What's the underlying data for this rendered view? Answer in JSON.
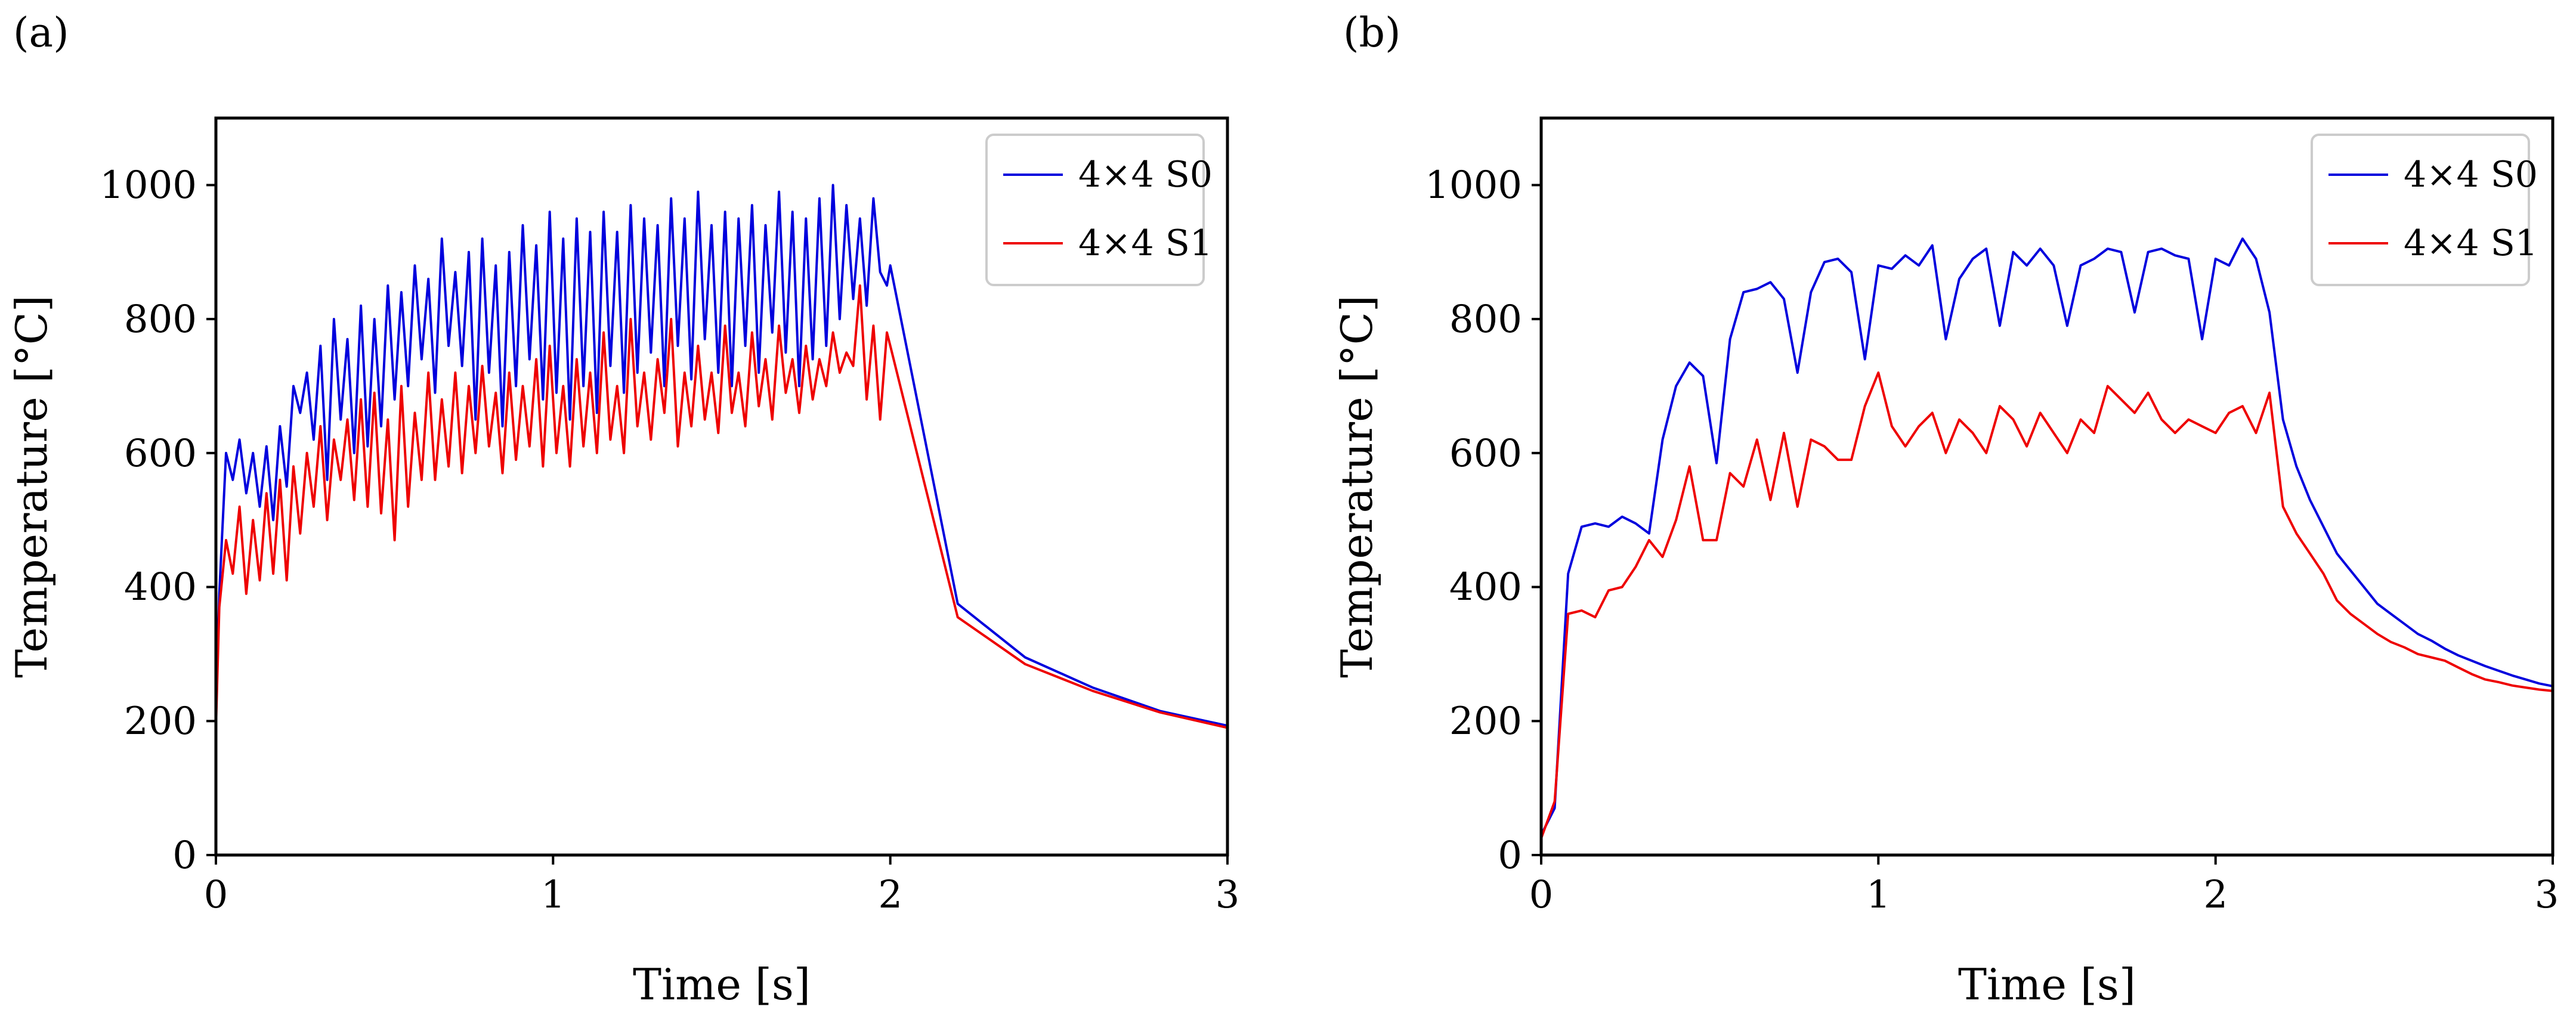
{
  "figure": {
    "colors": {
      "s0": "#0000dd",
      "s1": "#ee0000",
      "axis": "#000000",
      "legend_border": "#cccccc"
    }
  },
  "chart_data": [
    {
      "type": "line",
      "panel_label": "(a)",
      "xlabel": "Time [s]",
      "ylabel": "Temperature [°C]",
      "xlim": [
        0,
        3
      ],
      "ylim": [
        0,
        1100
      ],
      "xticks": [
        0,
        1,
        2,
        3
      ],
      "xtick_labels": [
        "0",
        "1",
        "2",
        "3"
      ],
      "yticks": [
        0,
        200,
        400,
        600,
        800,
        1000
      ],
      "ytick_labels": [
        "0",
        "200",
        "400",
        "600",
        "800",
        "1000"
      ],
      "legend": {
        "placement": "top-right",
        "entries": [
          "4×4 S0",
          "4×4 S1"
        ]
      },
      "series": [
        {
          "name": "4×4 S0",
          "color": "#0000dd",
          "x": [
            0,
            0.01,
            0.03,
            0.05,
            0.07,
            0.09,
            0.11,
            0.13,
            0.15,
            0.17,
            0.19,
            0.21,
            0.23,
            0.25,
            0.27,
            0.29,
            0.31,
            0.33,
            0.35,
            0.37,
            0.39,
            0.41,
            0.43,
            0.45,
            0.47,
            0.49,
            0.51,
            0.53,
            0.55,
            0.57,
            0.59,
            0.61,
            0.63,
            0.65,
            0.67,
            0.69,
            0.71,
            0.73,
            0.75,
            0.77,
            0.79,
            0.81,
            0.83,
            0.85,
            0.87,
            0.89,
            0.91,
            0.93,
            0.95,
            0.97,
            0.99,
            1.01,
            1.03,
            1.05,
            1.07,
            1.09,
            1.11,
            1.13,
            1.15,
            1.17,
            1.19,
            1.21,
            1.23,
            1.25,
            1.27,
            1.29,
            1.31,
            1.33,
            1.35,
            1.37,
            1.39,
            1.41,
            1.43,
            1.45,
            1.47,
            1.49,
            1.51,
            1.53,
            1.55,
            1.57,
            1.59,
            1.61,
            1.63,
            1.65,
            1.67,
            1.69,
            1.71,
            1.73,
            1.75,
            1.77,
            1.79,
            1.81,
            1.83,
            1.85,
            1.87,
            1.89,
            1.91,
            1.93,
            1.95,
            1.97,
            1.99,
            2.0,
            2.2,
            2.4,
            2.6,
            2.8,
            3.0
          ],
          "y": [
            210,
            390,
            600,
            560,
            620,
            540,
            600,
            520,
            610,
            500,
            640,
            550,
            700,
            660,
            720,
            620,
            760,
            560,
            800,
            650,
            770,
            600,
            820,
            610,
            800,
            640,
            850,
            680,
            840,
            700,
            880,
            740,
            860,
            690,
            920,
            760,
            870,
            730,
            900,
            650,
            920,
            720,
            880,
            640,
            900,
            700,
            940,
            740,
            910,
            680,
            960,
            690,
            920,
            650,
            950,
            700,
            930,
            660,
            960,
            730,
            930,
            690,
            970,
            720,
            950,
            750,
            940,
            700,
            980,
            760,
            950,
            710,
            990,
            770,
            940,
            720,
            960,
            700,
            950,
            760,
            970,
            720,
            940,
            780,
            990,
            750,
            960,
            700,
            950,
            740,
            980,
            760,
            1000,
            800,
            970,
            830,
            950,
            820,
            980,
            870,
            850,
            880,
            375,
            295,
            250,
            215,
            193
          ]
        },
        {
          "name": "4×4 S1",
          "color": "#ee0000",
          "x": [
            0,
            0.01,
            0.03,
            0.05,
            0.07,
            0.09,
            0.11,
            0.13,
            0.15,
            0.17,
            0.19,
            0.21,
            0.23,
            0.25,
            0.27,
            0.29,
            0.31,
            0.33,
            0.35,
            0.37,
            0.39,
            0.41,
            0.43,
            0.45,
            0.47,
            0.49,
            0.51,
            0.53,
            0.55,
            0.57,
            0.59,
            0.61,
            0.63,
            0.65,
            0.67,
            0.69,
            0.71,
            0.73,
            0.75,
            0.77,
            0.79,
            0.81,
            0.83,
            0.85,
            0.87,
            0.89,
            0.91,
            0.93,
            0.95,
            0.97,
            0.99,
            1.01,
            1.03,
            1.05,
            1.07,
            1.09,
            1.11,
            1.13,
            1.15,
            1.17,
            1.19,
            1.21,
            1.23,
            1.25,
            1.27,
            1.29,
            1.31,
            1.33,
            1.35,
            1.37,
            1.39,
            1.41,
            1.43,
            1.45,
            1.47,
            1.49,
            1.51,
            1.53,
            1.55,
            1.57,
            1.59,
            1.61,
            1.63,
            1.65,
            1.67,
            1.69,
            1.71,
            1.73,
            1.75,
            1.77,
            1.79,
            1.81,
            1.83,
            1.85,
            1.87,
            1.89,
            1.91,
            1.93,
            1.95,
            1.97,
            1.99,
            2.0,
            2.2,
            2.4,
            2.6,
            2.8,
            3.0
          ],
          "y": [
            190,
            370,
            470,
            420,
            520,
            390,
            500,
            410,
            540,
            420,
            560,
            410,
            580,
            480,
            600,
            520,
            640,
            500,
            620,
            560,
            650,
            530,
            680,
            520,
            690,
            510,
            650,
            470,
            700,
            520,
            660,
            560,
            720,
            560,
            680,
            580,
            720,
            570,
            700,
            600,
            730,
            610,
            690,
            570,
            720,
            590,
            700,
            610,
            740,
            580,
            760,
            600,
            700,
            580,
            740,
            610,
            720,
            600,
            780,
            620,
            700,
            600,
            800,
            640,
            720,
            620,
            740,
            660,
            800,
            610,
            720,
            640,
            760,
            650,
            720,
            630,
            790,
            660,
            720,
            640,
            780,
            670,
            740,
            650,
            790,
            690,
            740,
            660,
            760,
            680,
            740,
            700,
            780,
            720,
            750,
            730,
            850,
            680,
            790,
            650,
            780,
            760,
            355,
            285,
            245,
            213,
            190
          ]
        }
      ]
    },
    {
      "type": "line",
      "panel_label": "(b)",
      "xlabel": "Time [s]",
      "ylabel": "Temperature [°C]",
      "xlim": [
        0,
        3
      ],
      "ylim": [
        0,
        1100
      ],
      "xticks": [
        0,
        1,
        2,
        3
      ],
      "xtick_labels": [
        "0",
        "1",
        "2",
        "3"
      ],
      "yticks": [
        0,
        200,
        400,
        600,
        800,
        1000
      ],
      "ytick_labels": [
        "0",
        "200",
        "400",
        "600",
        "800",
        "1000"
      ],
      "legend": {
        "placement": "top-right",
        "entries": [
          "4×4 S0",
          "4×4 S1"
        ]
      },
      "series": [
        {
          "name": "4×4 S0",
          "color": "#0000dd",
          "x": [
            0,
            0.04,
            0.08,
            0.12,
            0.16,
            0.2,
            0.24,
            0.28,
            0.32,
            0.36,
            0.4,
            0.44,
            0.48,
            0.52,
            0.56,
            0.6,
            0.64,
            0.68,
            0.72,
            0.76,
            0.8,
            0.84,
            0.88,
            0.92,
            0.96,
            1.0,
            1.04,
            1.08,
            1.12,
            1.16,
            1.2,
            1.24,
            1.28,
            1.32,
            1.36,
            1.4,
            1.44,
            1.48,
            1.52,
            1.56,
            1.6,
            1.64,
            1.68,
            1.72,
            1.76,
            1.8,
            1.84,
            1.88,
            1.92,
            1.96,
            2.0,
            2.04,
            2.08,
            2.12,
            2.16,
            2.2,
            2.24,
            2.28,
            2.32,
            2.36,
            2.4,
            2.44,
            2.48,
            2.52,
            2.56,
            2.6,
            2.64,
            2.68,
            2.72,
            2.76,
            2.8,
            2.84,
            2.88,
            2.92,
            2.96,
            3.0
          ],
          "y": [
            30,
            70,
            420,
            490,
            495,
            490,
            505,
            495,
            480,
            620,
            700,
            735,
            715,
            585,
            770,
            840,
            845,
            855,
            830,
            720,
            840,
            885,
            890,
            870,
            740,
            880,
            875,
            895,
            880,
            910,
            770,
            860,
            890,
            905,
            790,
            900,
            880,
            905,
            880,
            790,
            880,
            890,
            905,
            900,
            810,
            900,
            905,
            895,
            890,
            770,
            890,
            880,
            920,
            890,
            810,
            650,
            580,
            530,
            490,
            450,
            425,
            400,
            375,
            360,
            345,
            330,
            320,
            308,
            298,
            290,
            282,
            275,
            268,
            262,
            256,
            252
          ]
        },
        {
          "name": "4×4 S1",
          "color": "#ee0000",
          "x": [
            0,
            0.04,
            0.08,
            0.12,
            0.16,
            0.2,
            0.24,
            0.28,
            0.32,
            0.36,
            0.4,
            0.44,
            0.48,
            0.52,
            0.56,
            0.6,
            0.64,
            0.68,
            0.72,
            0.76,
            0.8,
            0.84,
            0.88,
            0.92,
            0.96,
            1.0,
            1.04,
            1.08,
            1.12,
            1.16,
            1.2,
            1.24,
            1.28,
            1.32,
            1.36,
            1.4,
            1.44,
            1.48,
            1.52,
            1.56,
            1.6,
            1.64,
            1.68,
            1.72,
            1.76,
            1.8,
            1.84,
            1.88,
            1.92,
            1.96,
            2.0,
            2.04,
            2.08,
            2.12,
            2.16,
            2.2,
            2.24,
            2.28,
            2.32,
            2.36,
            2.4,
            2.44,
            2.48,
            2.52,
            2.56,
            2.6,
            2.64,
            2.68,
            2.72,
            2.76,
            2.8,
            2.84,
            2.88,
            2.92,
            2.96,
            3.0
          ],
          "y": [
            25,
            80,
            360,
            365,
            355,
            395,
            400,
            430,
            470,
            445,
            500,
            580,
            470,
            470,
            570,
            550,
            620,
            530,
            630,
            520,
            620,
            610,
            590,
            590,
            670,
            720,
            640,
            610,
            640,
            660,
            600,
            650,
            630,
            600,
            670,
            650,
            610,
            660,
            630,
            600,
            650,
            630,
            700,
            680,
            660,
            690,
            650,
            630,
            650,
            640,
            630,
            660,
            670,
            630,
            690,
            520,
            480,
            450,
            420,
            380,
            360,
            345,
            330,
            318,
            310,
            300,
            295,
            290,
            280,
            270,
            262,
            258,
            253,
            250,
            247,
            245
          ]
        }
      ]
    }
  ]
}
